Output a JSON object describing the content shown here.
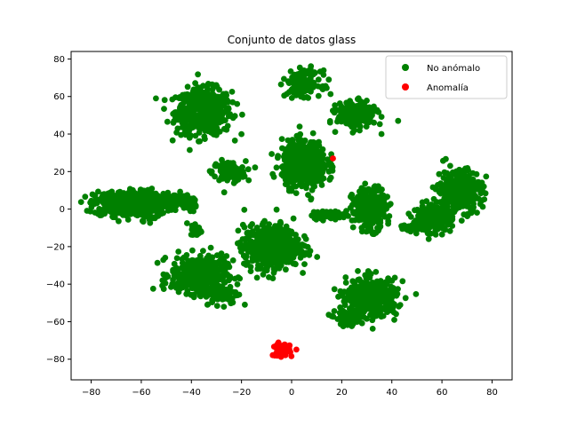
{
  "chart_data": {
    "type": "scatter",
    "title": "Conjunto de datos glass",
    "xlabel": "",
    "ylabel": "",
    "xlim": [
      -88,
      88
    ],
    "ylim": [
      -91,
      84
    ],
    "xticks": [
      -80,
      -60,
      -40,
      -20,
      0,
      20,
      40,
      60,
      80
    ],
    "yticks": [
      -80,
      -60,
      -40,
      -20,
      0,
      20,
      40,
      60,
      80
    ],
    "grid": false,
    "legend_position": "top-right",
    "series": [
      {
        "name": "No anómalo",
        "color": "#008000",
        "clusters": [
          {
            "cx": -35,
            "cy": 52,
            "rx": 10,
            "ry": 11,
            "n": 520
          },
          {
            "cx": -25,
            "cy": 20,
            "rx": 6,
            "ry": 5,
            "n": 120
          },
          {
            "cx": -68,
            "cy": 3,
            "rx": 10,
            "ry": 6,
            "n": 330
          },
          {
            "cx": -55,
            "cy": 3,
            "rx": 6,
            "ry": 6,
            "n": 200
          },
          {
            "cx": -47,
            "cy": 5,
            "rx": 4,
            "ry": 3,
            "n": 60
          },
          {
            "cx": -41,
            "cy": 3,
            "rx": 3,
            "ry": 3,
            "n": 40
          },
          {
            "cx": -37,
            "cy": -35,
            "rx": 10,
            "ry": 9,
            "n": 400
          },
          {
            "cx": -28,
            "cy": -45,
            "rx": 6,
            "ry": 5,
            "n": 120
          },
          {
            "cx": -38,
            "cy": -11,
            "rx": 2,
            "ry": 3,
            "n": 25
          },
          {
            "cx": -8,
            "cy": -20,
            "rx": 10,
            "ry": 10,
            "n": 650
          },
          {
            "cx": 5,
            "cy": 24,
            "rx": 8,
            "ry": 11,
            "n": 550
          },
          {
            "cx": 5,
            "cy": 67,
            "rx": 6,
            "ry": 6,
            "n": 150
          },
          {
            "cx": 26,
            "cy": 50,
            "rx": 7,
            "ry": 6,
            "n": 250
          },
          {
            "cx": 31,
            "cy": 0,
            "rx": 6,
            "ry": 10,
            "n": 300
          },
          {
            "cx": 15,
            "cy": -3,
            "rx": 7,
            "ry": 2,
            "n": 60
          },
          {
            "cx": 67,
            "cy": 10,
            "rx": 8,
            "ry": 10,
            "n": 350
          },
          {
            "cx": 56,
            "cy": -5,
            "rx": 7,
            "ry": 6,
            "n": 200
          },
          {
            "cx": 48,
            "cy": -10,
            "rx": 4,
            "ry": 2,
            "n": 40
          },
          {
            "cx": 32,
            "cy": -47,
            "rx": 9,
            "ry": 9,
            "n": 400
          },
          {
            "cx": 23,
            "cy": -58,
            "rx": 5,
            "ry": 4,
            "n": 100
          }
        ]
      },
      {
        "name": "Anomalía",
        "color": "#ff0000",
        "clusters": [
          {
            "cx": -4,
            "cy": -75,
            "rx": 3,
            "ry": 3,
            "n": 90
          }
        ],
        "points": [
          [
            16.5,
            27
          ]
        ]
      }
    ]
  }
}
